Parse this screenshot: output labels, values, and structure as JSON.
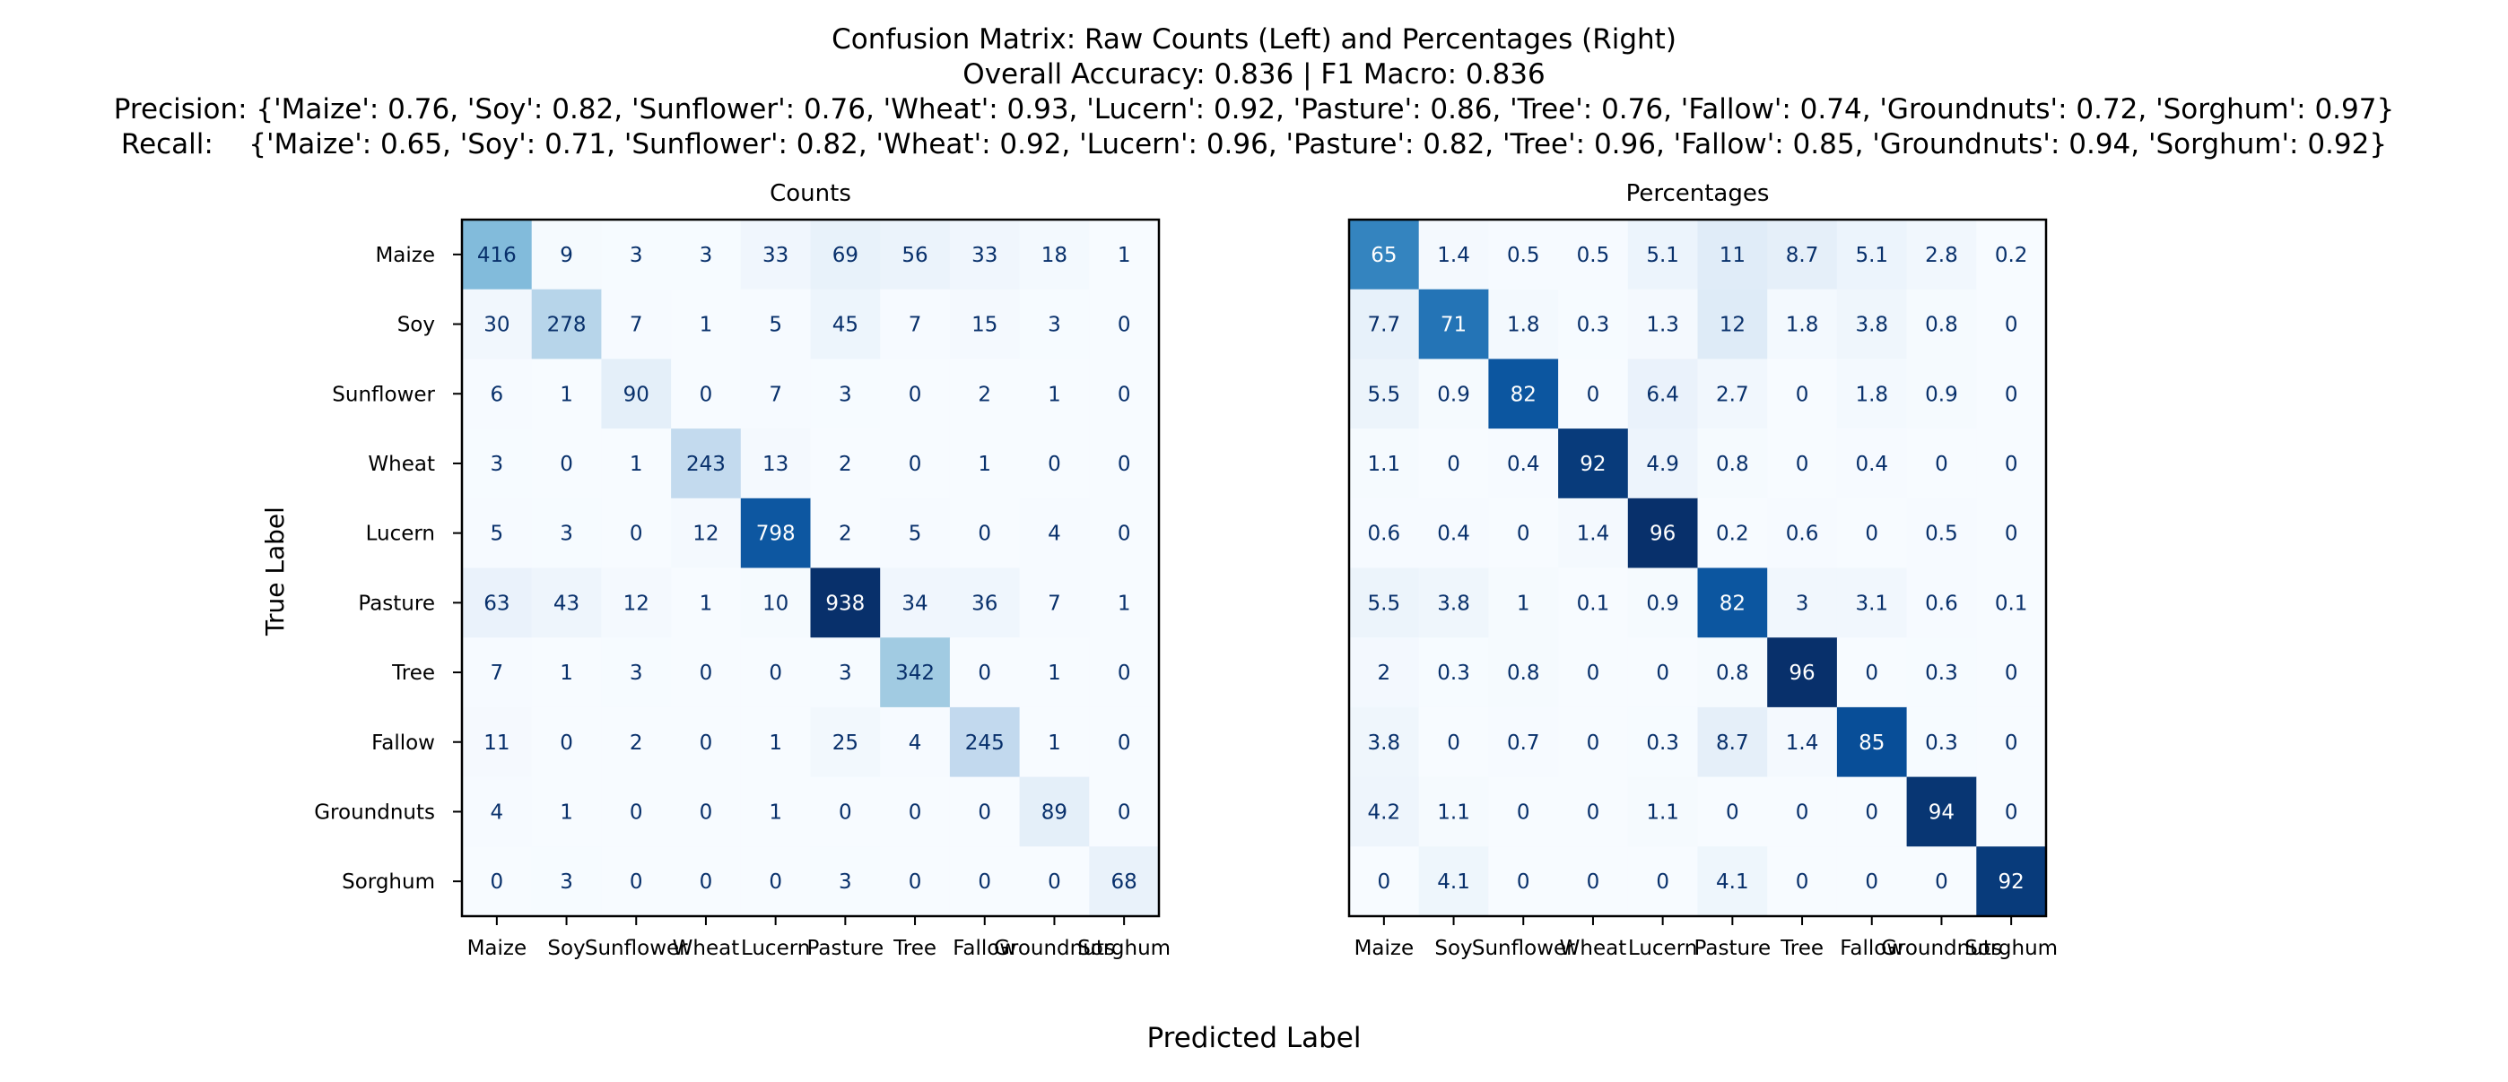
{
  "figure": {
    "title_lines": [
      "Confusion Matrix: Raw Counts (Left) and Percentages (Right)",
      "Overall Accuracy: 0.836 | F1 Macro: 0.836",
      "Precision: {'Maize': 0.76, 'Soy': 0.82, 'Sunflower': 0.76, 'Wheat': 0.93, 'Lucern': 0.92, 'Pasture': 0.86, 'Tree': 0.76, 'Fallow': 0.74, 'Groundnuts': 0.72, 'Sorghum': 0.97}",
      "Recall:    {'Maize': 0.65, 'Soy': 0.71, 'Sunflower': 0.82, 'Wheat': 0.92, 'Lucern': 0.96, 'Pasture': 0.82, 'Tree': 0.96, 'Fallow': 0.85, 'Groundnuts': 0.94, 'Sorghum': 0.92}"
    ],
    "xlabel": "Predicted Label",
    "ylabel": "True Label",
    "colormap": "Blues",
    "colormap_stops": [
      "#f7fbff",
      "#deebf7",
      "#c6dbef",
      "#9ecae1",
      "#6baed6",
      "#4292c6",
      "#2171b5",
      "#08519c",
      "#08306b"
    ]
  },
  "chart_data": [
    {
      "type": "heatmap",
      "title": "Counts",
      "x_categories": [
        "Maize",
        "Soy",
        "Sunflower",
        "Wheat",
        "Lucern",
        "Pasture",
        "Tree",
        "Fallow",
        "Groundnuts",
        "Sorghum"
      ],
      "y_categories": [
        "Maize",
        "Soy",
        "Sunflower",
        "Wheat",
        "Lucern",
        "Pasture",
        "Tree",
        "Fallow",
        "Groundnuts",
        "Sorghum"
      ],
      "values": [
        [
          416,
          9,
          3,
          3,
          33,
          69,
          56,
          33,
          18,
          1
        ],
        [
          30,
          278,
          7,
          1,
          5,
          45,
          7,
          15,
          3,
          0
        ],
        [
          6,
          1,
          90,
          0,
          7,
          3,
          0,
          2,
          1,
          0
        ],
        [
          3,
          0,
          1,
          243,
          13,
          2,
          0,
          1,
          0,
          0
        ],
        [
          5,
          3,
          0,
          12,
          798,
          2,
          5,
          0,
          4,
          0
        ],
        [
          63,
          43,
          12,
          1,
          10,
          938,
          34,
          36,
          7,
          1
        ],
        [
          7,
          1,
          3,
          0,
          0,
          3,
          342,
          0,
          1,
          0
        ],
        [
          11,
          0,
          2,
          0,
          1,
          25,
          4,
          245,
          1,
          0
        ],
        [
          4,
          1,
          0,
          0,
          1,
          0,
          0,
          0,
          89,
          0
        ],
        [
          0,
          3,
          0,
          0,
          0,
          3,
          0,
          0,
          0,
          68
        ]
      ],
      "shown_y_labels": true
    },
    {
      "type": "heatmap",
      "title": "Percentages",
      "x_categories": [
        "Maize",
        "Soy",
        "Sunflower",
        "Wheat",
        "Lucern",
        "Pasture",
        "Tree",
        "Fallow",
        "Groundnuts",
        "Sorghum"
      ],
      "y_categories": [
        "Maize",
        "Soy",
        "Sunflower",
        "Wheat",
        "Lucern",
        "Pasture",
        "Tree",
        "Fallow",
        "Groundnuts",
        "Sorghum"
      ],
      "values": [
        [
          65,
          1.4,
          0.5,
          0.5,
          5.1,
          11,
          8.7,
          5.1,
          2.8,
          0.2
        ],
        [
          7.7,
          71,
          1.8,
          0.3,
          1.3,
          12,
          1.8,
          3.8,
          0.8,
          0
        ],
        [
          5.5,
          0.9,
          82,
          0,
          6.4,
          2.7,
          0,
          1.8,
          0.9,
          0
        ],
        [
          1.1,
          0,
          0.4,
          92,
          4.9,
          0.8,
          0,
          0.4,
          0,
          0
        ],
        [
          0.6,
          0.4,
          0,
          1.4,
          96,
          0.2,
          0.6,
          0,
          0.5,
          0
        ],
        [
          5.5,
          3.8,
          1,
          0.1,
          0.9,
          82,
          3,
          3.1,
          0.6,
          0.1
        ],
        [
          2,
          0.3,
          0.8,
          0,
          0,
          0.8,
          96,
          0,
          0.3,
          0
        ],
        [
          3.8,
          0,
          0.7,
          0,
          0.3,
          8.7,
          1.4,
          85,
          0.3,
          0
        ],
        [
          4.2,
          1.1,
          0,
          0,
          1.1,
          0,
          0,
          0,
          94,
          0
        ],
        [
          0,
          4.1,
          0,
          0,
          0,
          4.1,
          0,
          0,
          0,
          92
        ]
      ],
      "shown_y_labels": false
    }
  ]
}
